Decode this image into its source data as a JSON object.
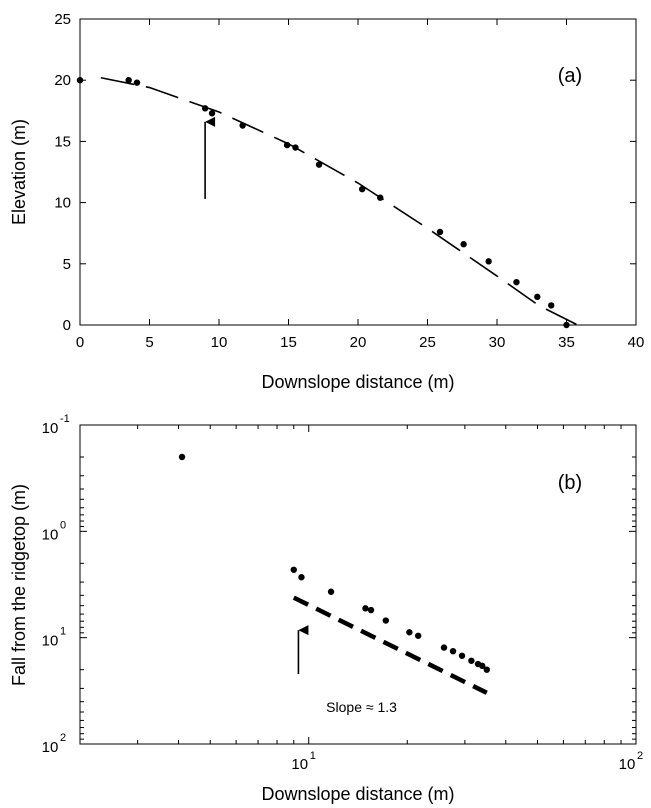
{
  "chart_data": [
    {
      "type": "scatter",
      "panel_label": "(a)",
      "xlabel": "Downslope distance (m)",
      "ylabel": "Elevation (m)",
      "xlim": [
        0,
        40
      ],
      "ylim": [
        0,
        25
      ],
      "x_ticks": [
        0,
        5,
        10,
        15,
        20,
        25,
        30,
        35,
        40
      ],
      "x_tick_labels": [
        "0",
        "5",
        "10",
        "15",
        "20",
        "25",
        "30",
        "35",
        "40"
      ],
      "y_ticks": [
        0,
        5,
        10,
        15,
        20,
        25
      ],
      "y_tick_labels": [
        "0",
        "5",
        "10",
        "15",
        "20",
        "25"
      ],
      "grid": false,
      "series": [
        {
          "points": [
            [
              0,
              20.0
            ],
            [
              3.5,
              20.0
            ],
            [
              4.1,
              19.8
            ],
            [
              9.0,
              17.7
            ],
            [
              9.5,
              17.3
            ],
            [
              11.7,
              16.3
            ],
            [
              14.9,
              14.7
            ],
            [
              15.5,
              14.5
            ],
            [
              17.2,
              13.1
            ],
            [
              20.3,
              11.1
            ],
            [
              21.6,
              10.4
            ],
            [
              25.9,
              7.6
            ],
            [
              27.6,
              6.6
            ],
            [
              29.4,
              5.2
            ],
            [
              31.4,
              3.5
            ],
            [
              32.9,
              2.3
            ],
            [
              33.9,
              1.6
            ],
            [
              35.0,
              0.0
            ]
          ]
        },
        {
          "style": "long-dash",
          "curve": [
            [
              1.5,
              20.2
            ],
            [
              5,
              19.4
            ],
            [
              10,
              17.4
            ],
            [
              15,
              14.8
            ],
            [
              20,
              11.6
            ],
            [
              25,
              7.9
            ],
            [
              30,
              4.0
            ],
            [
              33,
              1.6
            ],
            [
              35.8,
              0.0
            ]
          ]
        }
      ],
      "annotations": [
        {
          "type": "arrow",
          "x": 9.0,
          "y_from": 10.3,
          "y_to": 16.6
        }
      ]
    },
    {
      "type": "scatter",
      "panel_label": "(b)",
      "xlabel": "Downslope distance (m)",
      "ylabel": "Fall from the ridgetop (m)",
      "x_scale": "log",
      "y_scale": "log",
      "y_axis_inverted": true,
      "xlim": [
        2,
        100
      ],
      "ylim": [
        0.1,
        100
      ],
      "x_ticks": [
        {
          "base": "10",
          "exp": "1",
          "value": 10
        },
        {
          "base": "10",
          "exp": "2",
          "value": 100
        }
      ],
      "y_ticks": [
        {
          "base": "10",
          "exp": "-1",
          "value": 0.1
        },
        {
          "base": "10",
          "exp": "0",
          "value": 1
        },
        {
          "base": "10",
          "exp": "1",
          "value": 10
        },
        {
          "base": "10",
          "exp": "2",
          "value": 100
        }
      ],
      "grid": false,
      "series": [
        {
          "points": [
            [
              4.1,
              0.2
            ],
            [
              9.0,
              2.3
            ],
            [
              9.5,
              2.7
            ],
            [
              11.7,
              3.7
            ],
            [
              14.9,
              5.3
            ],
            [
              15.5,
              5.5
            ],
            [
              17.2,
              6.9
            ],
            [
              20.3,
              8.9
            ],
            [
              21.6,
              9.6
            ],
            [
              25.9,
              12.4
            ],
            [
              27.6,
              13.4
            ],
            [
              29.4,
              14.8
            ],
            [
              31.4,
              16.5
            ],
            [
              32.9,
              17.7
            ],
            [
              33.9,
              18.4
            ],
            [
              35.0,
              20.0
            ]
          ]
        },
        {
          "style": "thick-dash",
          "line": [
            [
              9.0,
              4.2
            ],
            [
              35.0,
              33.0
            ]
          ]
        }
      ],
      "annotations": [
        {
          "type": "arrow",
          "x": 9.3,
          "y_from": 22.0,
          "y_to": 8.5
        },
        {
          "type": "text",
          "text": "Slope ≈ 1.3",
          "x": 14.5,
          "y": 50.0
        }
      ]
    }
  ]
}
